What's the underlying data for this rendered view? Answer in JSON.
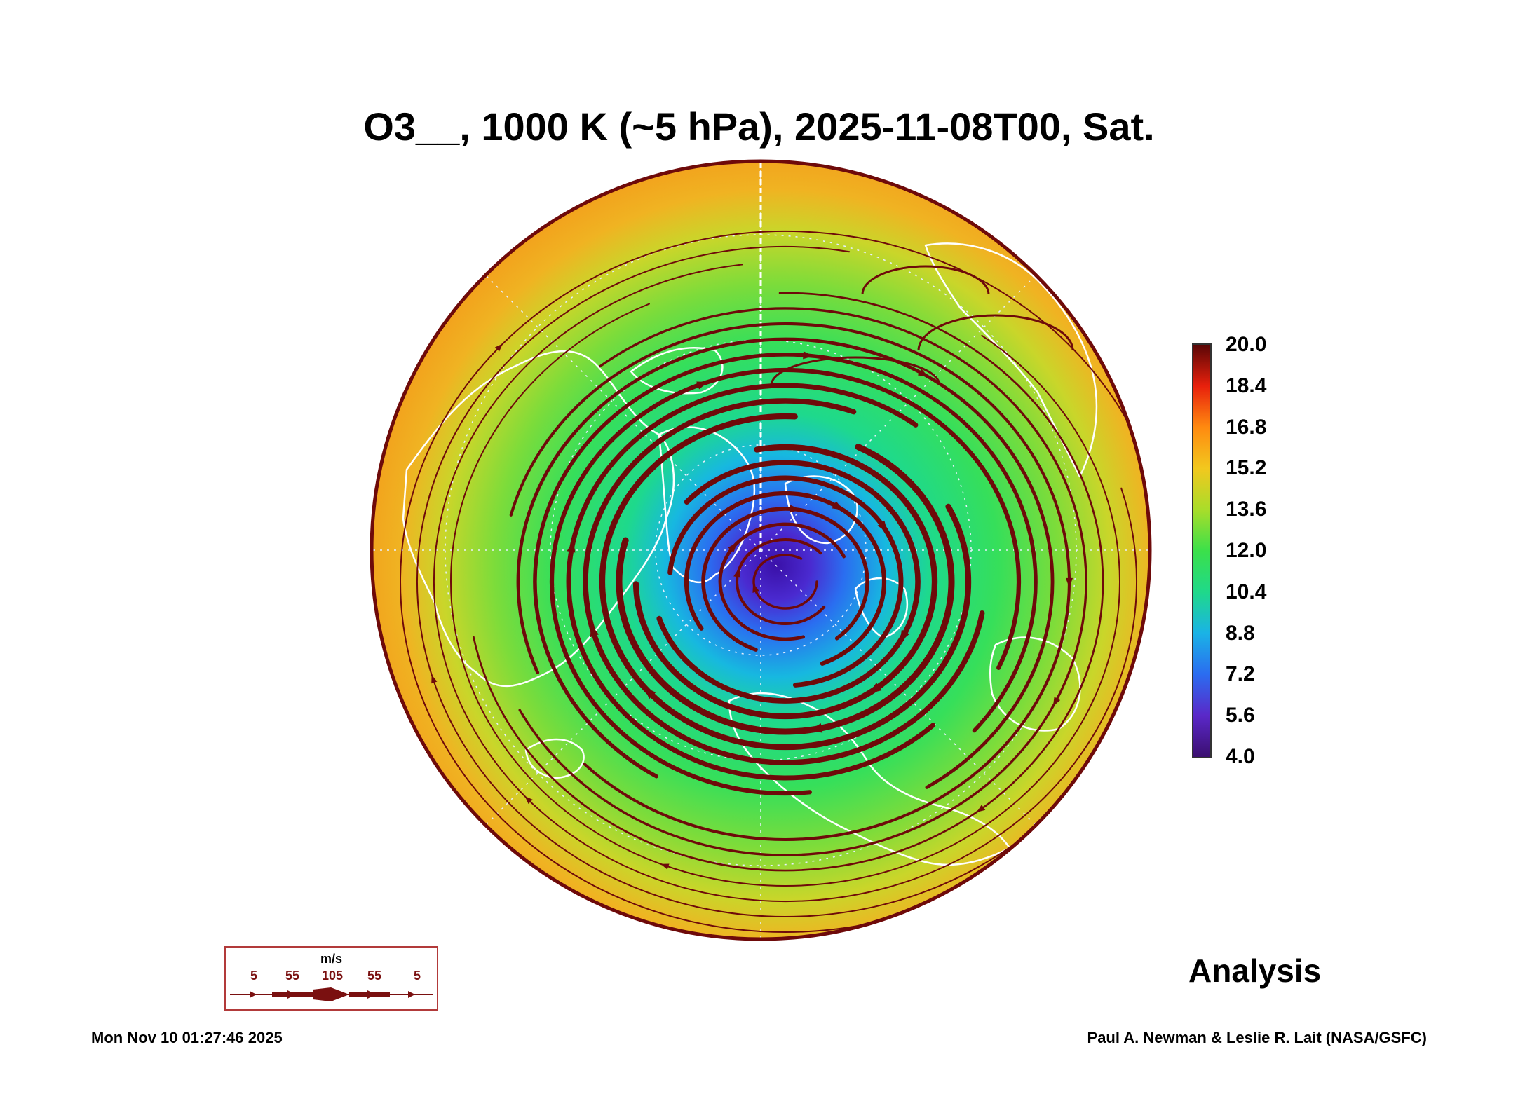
{
  "title": "O3__, 1000 K (~5 hPa), 2025-11-08T00, Sat.",
  "colorbar": {
    "ticks": [
      "20.0",
      "18.4",
      "16.8",
      "15.2",
      "13.6",
      "12.0",
      "10.4",
      "8.8",
      "7.2",
      "5.6",
      "4.0"
    ],
    "colors": [
      "#3b0f70",
      "#5a28c8",
      "#2b6cf0",
      "#1ab3e6",
      "#1fd98a",
      "#3be04a",
      "#a9dd2a",
      "#f2c81e",
      "#ff8a10",
      "#e8200c",
      "#5a0606"
    ]
  },
  "legend": {
    "unit": "m/s",
    "speeds": [
      "5",
      "55",
      "105",
      "55",
      "5"
    ],
    "color": "#7a1010"
  },
  "analysis_label": "Analysis",
  "timestamp": "Mon Nov 10 01:27:46 2025",
  "credits": "Paul A. Newman & Leslie R. Lait (NASA/GSFC)",
  "map": {
    "streamline_color": "#6e0a0a",
    "coastline_color": "#ffffff"
  }
}
